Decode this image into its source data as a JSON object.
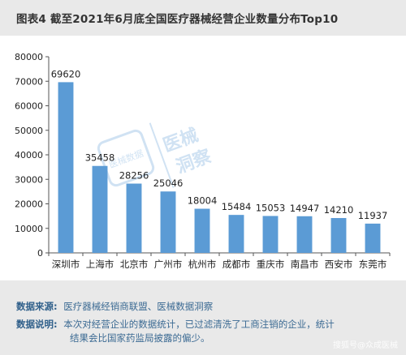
{
  "title": "图表4 截至2021年6月底全国医疗器械经营企业数量分布Top10",
  "chart_data": {
    "type": "bar",
    "categories": [
      "深圳市",
      "上海市",
      "北京市",
      "广州市",
      "杭州市",
      "成都市",
      "重庆市",
      "南昌市",
      "西安市",
      "东莞市"
    ],
    "values": [
      69620,
      35458,
      28256,
      25046,
      18004,
      15484,
      15053,
      14947,
      14210,
      11937
    ],
    "ylim": [
      0,
      80000
    ],
    "yticks": [
      0,
      10000,
      20000,
      30000,
      40000,
      50000,
      60000,
      70000,
      80000
    ],
    "bar_color": "#5b9bd5",
    "grid": false
  },
  "watermark": {
    "text_lines": [
      "医械",
      "洞察"
    ],
    "badge_text": "医械数据"
  },
  "footer": {
    "source_label": "数据来源:",
    "source_text": "医疗器械经销商联盟、医械数据洞察",
    "note_label": "数据说明:",
    "note_text_1": "本次对经营企业的数据统计，已过滤清洗了工商注销的企业，统计",
    "note_text_2": "结果会比国家药监局披露的偏少。"
  },
  "account_watermark": "搜狐号@众成医械"
}
